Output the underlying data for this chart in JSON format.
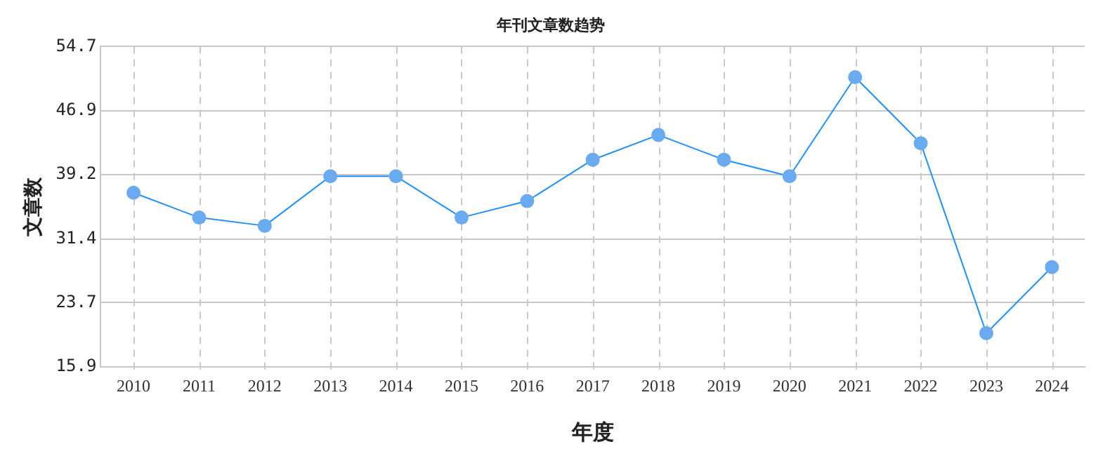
{
  "chart_data": {
    "type": "line",
    "title": "年刊文章数趋势",
    "xlabel": "年度",
    "ylabel": "文章数",
    "categories": [
      "2010",
      "2011",
      "2012",
      "2013",
      "2014",
      "2015",
      "2016",
      "2017",
      "2018",
      "2019",
      "2020",
      "2021",
      "2022",
      "2023",
      "2024"
    ],
    "series": [
      {
        "color": "#1e90ff",
        "values": [
          37,
          34,
          33,
          39,
          39,
          34,
          36,
          41,
          44,
          41,
          39,
          51,
          43,
          20,
          28
        ]
      }
    ],
    "ylim": [
      15.9,
      54.7
    ],
    "yticks": [
      15.9,
      23.7,
      31.4,
      39.2,
      46.9,
      54.7
    ],
    "grid": true,
    "legend": false,
    "marker": "circle",
    "line_style": "solid"
  }
}
